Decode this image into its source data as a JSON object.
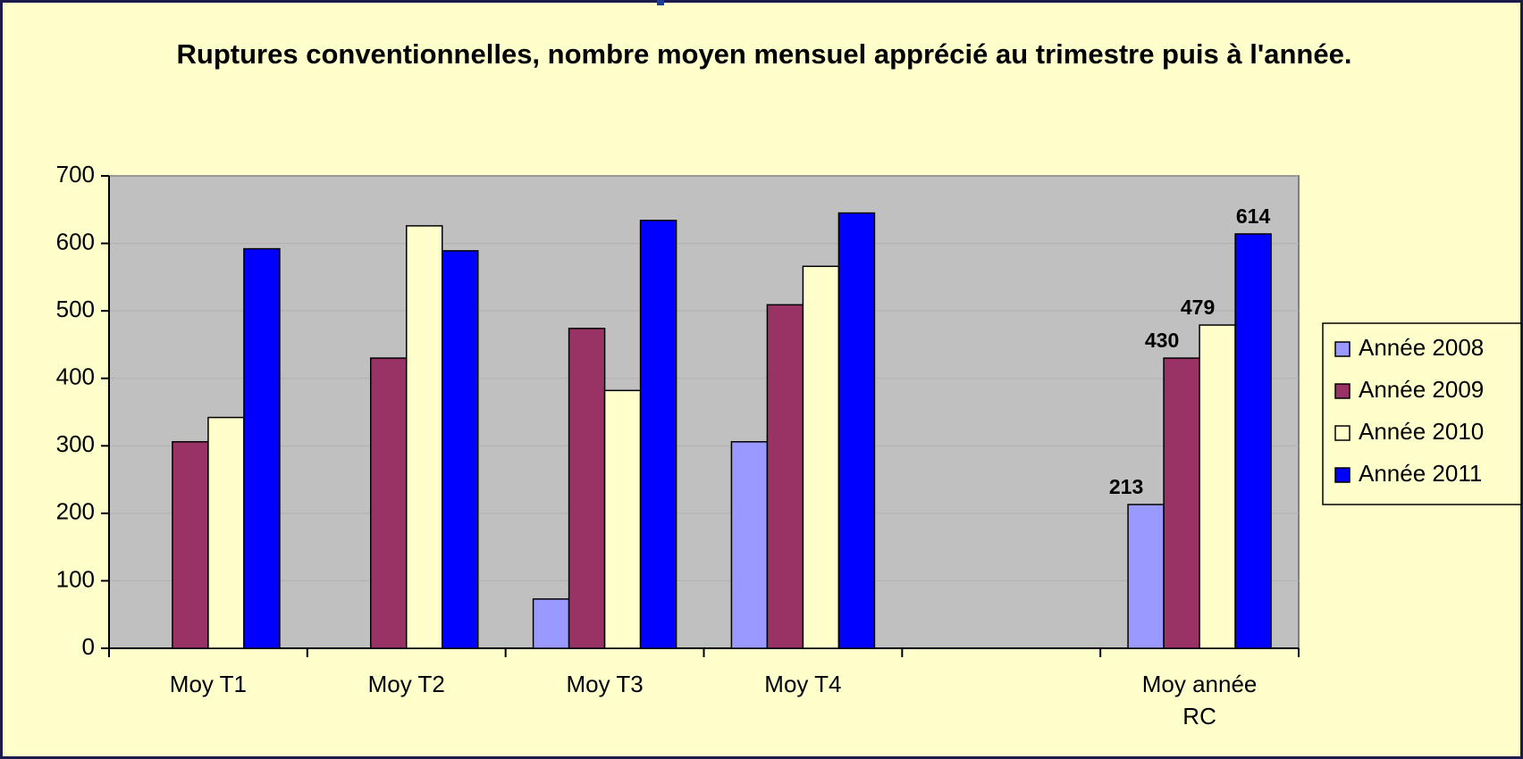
{
  "chart_data": {
    "type": "bar",
    "title": "Ruptures conventionnelles, nombre moyen mensuel apprécié au trimestre puis à l'année.",
    "categories": [
      "Moy T1",
      "Moy T2",
      "Moy T3",
      "Moy T4",
      null,
      "Moy année RC"
    ],
    "series": [
      {
        "name": "Année 2008",
        "color": "#9999ff",
        "values": [
          null,
          null,
          73,
          306,
          null,
          213
        ],
        "value_labels": [
          null,
          null,
          null,
          null,
          null,
          "213"
        ]
      },
      {
        "name": "Année 2009",
        "color": "#993366",
        "values": [
          306,
          430,
          474,
          509,
          null,
          430
        ],
        "value_labels": [
          null,
          null,
          null,
          null,
          null,
          "430"
        ]
      },
      {
        "name": "Année 2010",
        "color": "#ffffcc",
        "values": [
          342,
          626,
          382,
          566,
          null,
          479
        ],
        "value_labels": [
          null,
          null,
          null,
          null,
          null,
          "479"
        ]
      },
      {
        "name": "Année 2011",
        "color": "#0000ff",
        "values": [
          592,
          589,
          634,
          645,
          null,
          614
        ],
        "value_labels": [
          null,
          null,
          null,
          null,
          null,
          "614"
        ]
      }
    ],
    "ylim": [
      0,
      700
    ],
    "yticks": [
      0,
      100,
      200,
      300,
      400,
      500,
      600,
      700
    ],
    "grid": true,
    "legend": "right"
  }
}
